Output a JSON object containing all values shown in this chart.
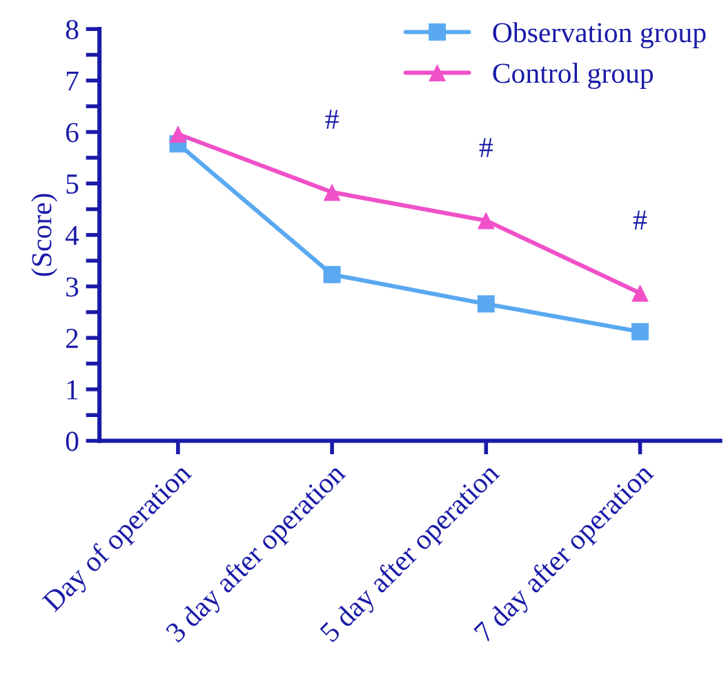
{
  "chart_data": {
    "type": "line",
    "ylabel": "(Score)",
    "categories": [
      "Day of operation",
      "3 day after operation",
      "5 day after operation",
      "7 day after operation"
    ],
    "series": [
      {
        "name": "Observation group",
        "color": "#5aa9f0",
        "values": [
          5.77,
          3.23,
          2.66,
          2.12
        ],
        "marker": "square"
      },
      {
        "name": "Control group",
        "color": "#f050c8",
        "values": [
          5.96,
          4.83,
          4.28,
          2.87
        ],
        "marker": "triangle"
      }
    ],
    "ylim": [
      0,
      8
    ],
    "yticks": [
      0,
      {
        "value": 0.5,
        "label": null
      },
      1,
      {
        "value": 1.5,
        "label": null
      },
      2,
      {
        "value": 2.5,
        "label": null
      },
      3,
      {
        "value": 3.5,
        "label": null
      },
      4,
      {
        "value": 4.5,
        "label": null
      },
      5,
      {
        "value": 5.5,
        "label": null
      },
      6,
      {
        "value": 6.5,
        "label": null
      },
      7,
      {
        "value": 7.5,
        "label": null
      },
      8
    ],
    "annotations": [
      "#",
      "#",
      "#"
    ],
    "legend": "top right",
    "grid": false,
    "line_style": "solid"
  }
}
